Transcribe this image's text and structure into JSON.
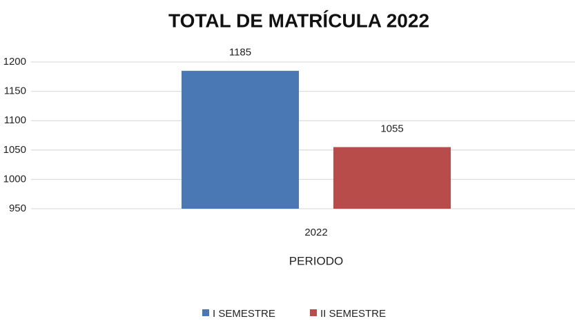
{
  "chart_data": {
    "type": "bar",
    "title": "TOTAL DE MATRÍCULA 2022",
    "x_label": "PERIODO",
    "categories": [
      "2022"
    ],
    "series": [
      {
        "name": "I SEMESTRE",
        "color": "#4a78b4",
        "values": [
          1185
        ]
      },
      {
        "name": "II SEMESTRE",
        "color": "#b84c4a",
        "values": [
          1055
        ]
      }
    ],
    "ylim": [
      950,
      1200
    ],
    "yticks": [
      950,
      1000,
      1050,
      1100,
      1150,
      1200
    ],
    "grid": true,
    "legend": "bottom"
  }
}
